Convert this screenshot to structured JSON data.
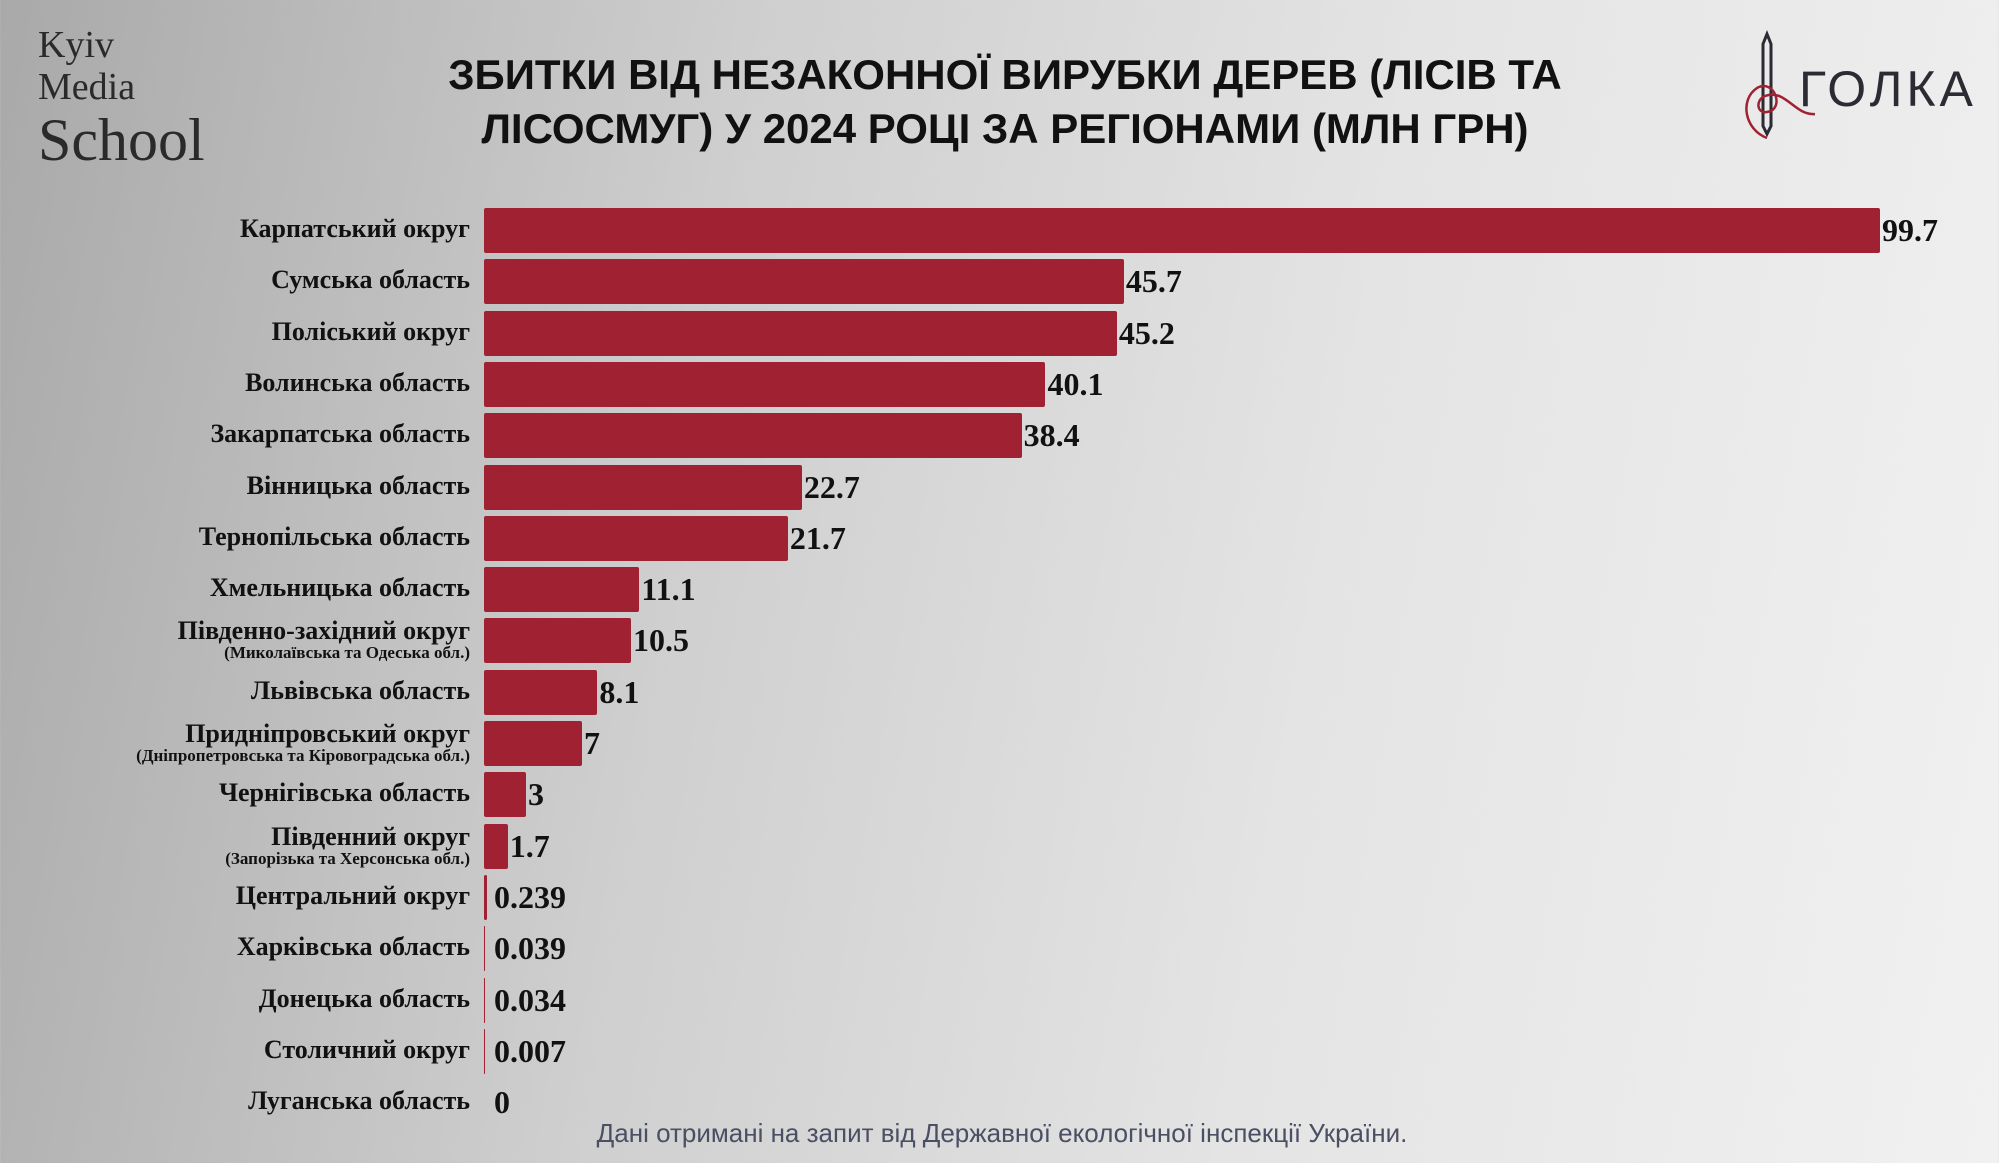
{
  "branding": {
    "left_logo": [
      "Kyiv",
      "Media",
      "School"
    ],
    "right_logo": "ГОЛКА"
  },
  "chart_data": {
    "type": "bar",
    "orientation": "horizontal",
    "title": "ЗБИТКИ ВІД НЕЗАКОННОЇ ВИРУБКИ ДЕРЕВ (ЛІСІВ ТА ЛІСОСМУГ) У 2024 РОЦІ ЗА РЕГІОНАМИ (МЛН ГРН)",
    "title_lines": [
      "ЗБИТКИ ВІД НЕЗАКОННОЇ ВИРУБКИ ДЕРЕВ (ЛІСІВ ТА",
      "ЛІСОСМУГ) У 2024 РОЦІ ЗА РЕГІОНАМИ (МЛН ГРН)"
    ],
    "bar_color": "#a02232",
    "grid": false,
    "xlim": [
      0,
      99.7
    ],
    "categories": [
      {
        "label": "Карпатський округ",
        "sub": ""
      },
      {
        "label": "Сумська область",
        "sub": ""
      },
      {
        "label": "Поліський округ",
        "sub": ""
      },
      {
        "label": "Волинська область",
        "sub": ""
      },
      {
        "label": "Закарпатська область",
        "sub": ""
      },
      {
        "label": "Вінницька область",
        "sub": ""
      },
      {
        "label": "Тернопільська область",
        "sub": ""
      },
      {
        "label": "Хмельницька область",
        "sub": ""
      },
      {
        "label": "Південно-західний округ",
        "sub": "(Миколаївська та Одеська обл.)"
      },
      {
        "label": "Львівська область",
        "sub": ""
      },
      {
        "label": "Придніпровський округ",
        "sub": "(Дніпропетровська та Кіровоградська обл.)"
      },
      {
        "label": "Чернігівська область",
        "sub": ""
      },
      {
        "label": "Південний округ",
        "sub": "(Запорізька та Херсонська обл.)"
      },
      {
        "label": "Центральний округ",
        "sub": ""
      },
      {
        "label": "Харківська область",
        "sub": ""
      },
      {
        "label": "Донецька область",
        "sub": ""
      },
      {
        "label": "Столичний округ",
        "sub": ""
      },
      {
        "label": "Луганська область",
        "sub": ""
      }
    ],
    "values": [
      99.7,
      45.7,
      45.2,
      40.1,
      38.4,
      22.7,
      21.7,
      11.1,
      10.5,
      8.1,
      7,
      3,
      1.7,
      0.239,
      0.039,
      0.034,
      0.007,
      0
    ],
    "value_labels": [
      "99.7",
      "45.7",
      "45.2",
      "40.1",
      "38.4",
      "22.7",
      "21.7",
      "11.1",
      "10.5",
      "8.1",
      "7",
      "3",
      "1.7",
      "0.239",
      "0.039",
      "0.034",
      "0.007",
      "0"
    ]
  },
  "footer": "Дані отримані на запит від Державної екологічної інспекції України."
}
